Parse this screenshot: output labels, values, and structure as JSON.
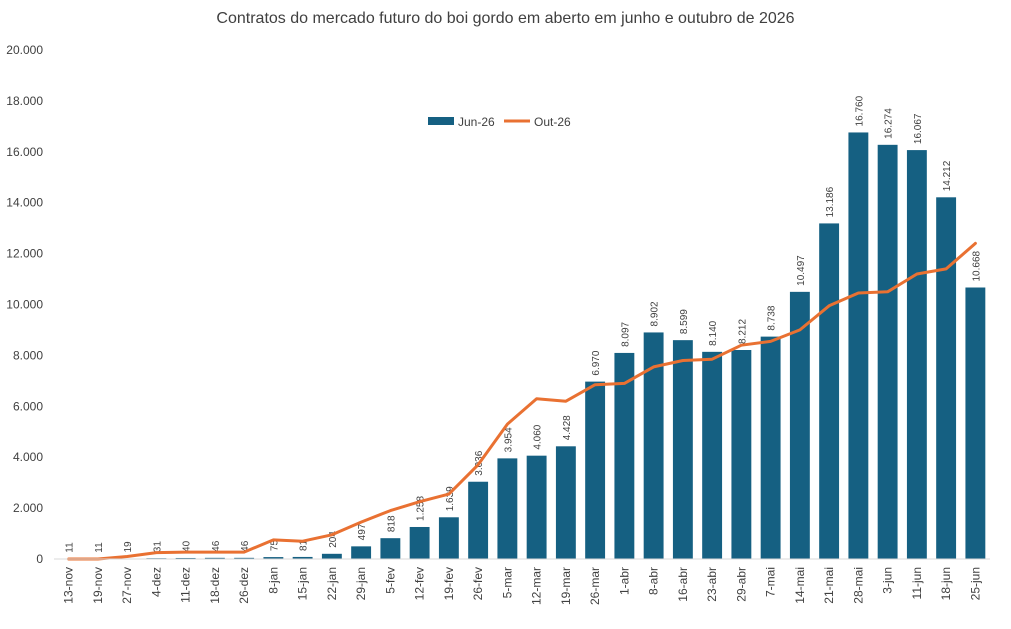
{
  "chart_data": {
    "type": "bar",
    "title": "Contratos do mercado futuro do boi gordo em aberto em junho  e outubro de 2026",
    "xlabel": "",
    "ylabel": "",
    "ylim": [
      0,
      20000
    ],
    "yticks": [
      "0",
      "2.000",
      "4.000",
      "6.000",
      "8.000",
      "10.000",
      "12.000",
      "14.000",
      "16.000",
      "18.000",
      "20.000"
    ],
    "grid": false,
    "legend_position": "top-center",
    "categories": [
      "13-nov",
      "19-nov",
      "27-nov",
      "4-dez",
      "11-dez",
      "18-dez",
      "26-dez",
      "8-jan",
      "15-jan",
      "22-jan",
      "29-jan",
      "5-fev",
      "12-fev",
      "19-fev",
      "26-fev",
      "5-mar",
      "12-mar",
      "19-mar",
      "26-mar",
      "1-abr",
      "8-abr",
      "16-abr",
      "23-abr",
      "29-abr",
      "7-mai",
      "14-mai",
      "21-mai",
      "28-mai",
      "3-jun",
      "11-jun",
      "18-jun",
      "25-jun"
    ],
    "series": [
      {
        "name": "Jun-26",
        "type": "bar",
        "color": "#156082",
        "values": [
          11,
          11,
          19,
          31,
          40,
          46,
          46,
          75,
          81,
          204,
          497,
          818,
          1258,
          1639,
          3036,
          3954,
          4060,
          4428,
          6970,
          8097,
          8902,
          8599,
          8140,
          8212,
          8738,
          10497,
          13186,
          16760,
          16274,
          16067,
          14212,
          10668
        ],
        "labels": [
          "11",
          "11",
          "19",
          "31",
          "40",
          "46",
          "46",
          "75",
          "81",
          "204",
          "497",
          "818",
          "1.258",
          "1.639",
          "3.036",
          "3.954",
          "4.060",
          "4.428",
          "6.970",
          "8.097",
          "8.902",
          "8.599",
          "8.140",
          "8.212",
          "8.738",
          "10.497",
          "13.186",
          "16.760",
          "16.274",
          "16.067",
          "14.212",
          "10.668"
        ]
      },
      {
        "name": "Out-26",
        "type": "line",
        "color": "#E97132",
        "values": [
          0,
          0,
          100,
          250,
          270,
          270,
          270,
          750,
          700,
          950,
          1450,
          1900,
          2250,
          2550,
          3700,
          5300,
          6300,
          6200,
          6850,
          6900,
          7550,
          7800,
          7850,
          8400,
          8550,
          9000,
          9950,
          10450,
          10500,
          11200,
          11400,
          12400
        ]
      }
    ]
  }
}
